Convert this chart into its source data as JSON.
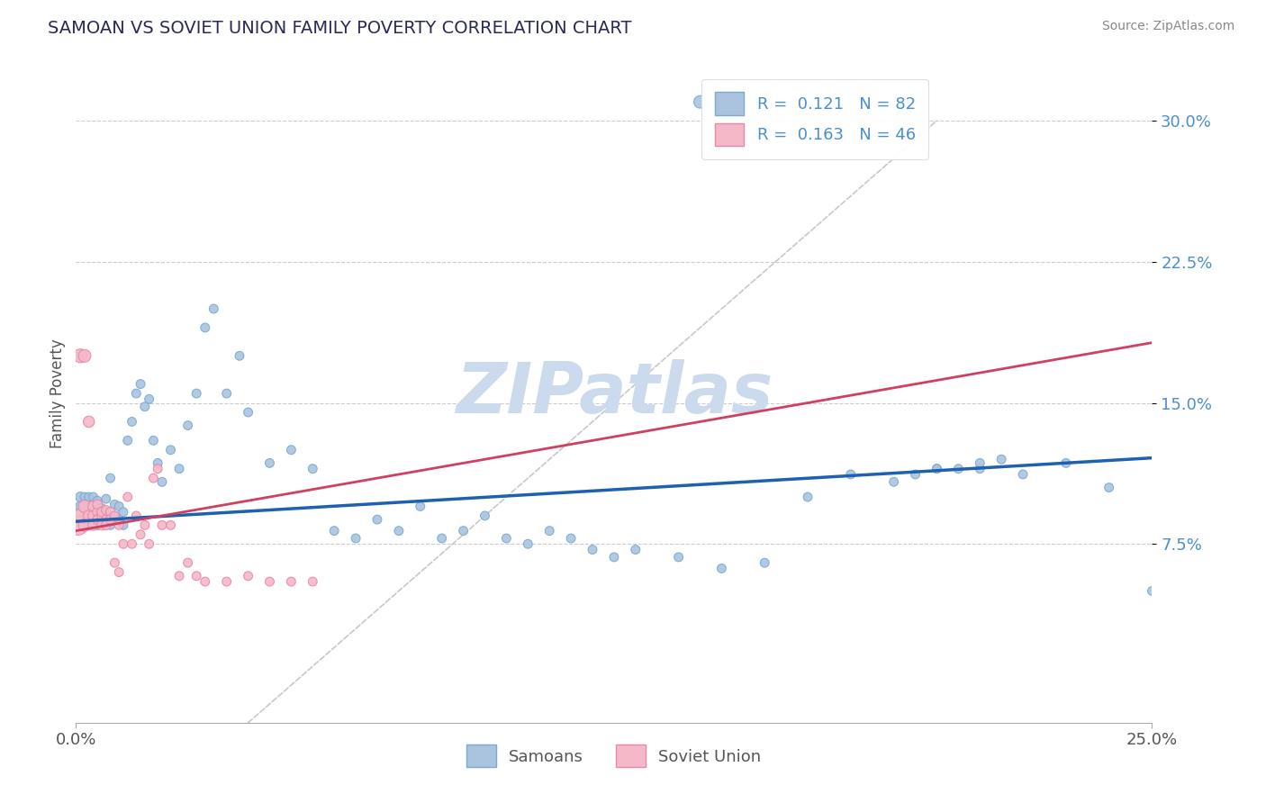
{
  "title": "SAMOAN VS SOVIET UNION FAMILY POVERTY CORRELATION CHART",
  "source_text": "Source: ZipAtlas.com",
  "ylabel": "Family Poverty",
  "xlim": [
    0.0,
    0.25
  ],
  "ylim": [
    -0.02,
    0.33
  ],
  "y_ticks": [
    0.075,
    0.15,
    0.225,
    0.3
  ],
  "y_tick_labels": [
    "7.5%",
    "15.0%",
    "22.5%",
    "30.0%"
  ],
  "samoan_color": "#aac4e0",
  "samoan_edge_color": "#7aaad0",
  "soviet_color": "#f5b8c8",
  "soviet_edge_color": "#e888a8",
  "trend_samoan_color": "#2060b0",
  "trend_soviet_color": "#d04060",
  "R_samoan": 0.121,
  "N_samoan": 82,
  "R_soviet": 0.163,
  "N_soviet": 46,
  "watermark": "ZIPatlas",
  "watermark_color": "#ccdaee",
  "grid_color": "#cccccc",
  "background_color": "#ffffff",
  "samoan_x": [
    0.001,
    0.001,
    0.002,
    0.002,
    0.002,
    0.003,
    0.003,
    0.003,
    0.004,
    0.004,
    0.004,
    0.005,
    0.005,
    0.005,
    0.006,
    0.006,
    0.007,
    0.007,
    0.007,
    0.008,
    0.008,
    0.009,
    0.009,
    0.01,
    0.01,
    0.011,
    0.011,
    0.012,
    0.013,
    0.014,
    0.015,
    0.016,
    0.017,
    0.018,
    0.019,
    0.02,
    0.022,
    0.024,
    0.026,
    0.028,
    0.03,
    0.032,
    0.035,
    0.038,
    0.04,
    0.045,
    0.05,
    0.055,
    0.06,
    0.065,
    0.07,
    0.075,
    0.08,
    0.085,
    0.09,
    0.095,
    0.1,
    0.105,
    0.11,
    0.115,
    0.12,
    0.125,
    0.13,
    0.14,
    0.15,
    0.16,
    0.17,
    0.18,
    0.19,
    0.2,
    0.21,
    0.22,
    0.23,
    0.24,
    0.25,
    0.255,
    0.2,
    0.21,
    0.195,
    0.205,
    0.215,
    0.145
  ],
  "samoan_y": [
    0.095,
    0.1,
    0.09,
    0.095,
    0.1,
    0.085,
    0.09,
    0.1,
    0.088,
    0.093,
    0.1,
    0.085,
    0.092,
    0.098,
    0.087,
    0.094,
    0.086,
    0.092,
    0.099,
    0.085,
    0.11,
    0.09,
    0.096,
    0.088,
    0.095,
    0.085,
    0.092,
    0.13,
    0.14,
    0.155,
    0.16,
    0.148,
    0.152,
    0.13,
    0.118,
    0.108,
    0.125,
    0.115,
    0.138,
    0.155,
    0.19,
    0.2,
    0.155,
    0.175,
    0.145,
    0.118,
    0.125,
    0.115,
    0.082,
    0.078,
    0.088,
    0.082,
    0.095,
    0.078,
    0.082,
    0.09,
    0.078,
    0.075,
    0.082,
    0.078,
    0.072,
    0.068,
    0.072,
    0.068,
    0.062,
    0.065,
    0.1,
    0.112,
    0.108,
    0.115,
    0.115,
    0.112,
    0.118,
    0.105,
    0.05,
    0.052,
    0.115,
    0.118,
    0.112,
    0.115,
    0.12,
    0.31
  ],
  "soviet_x": [
    0.0005,
    0.001,
    0.001,
    0.002,
    0.002,
    0.002,
    0.003,
    0.003,
    0.004,
    0.004,
    0.004,
    0.005,
    0.005,
    0.005,
    0.006,
    0.006,
    0.006,
    0.007,
    0.007,
    0.007,
    0.008,
    0.008,
    0.009,
    0.009,
    0.01,
    0.01,
    0.011,
    0.012,
    0.013,
    0.014,
    0.015,
    0.016,
    0.017,
    0.018,
    0.019,
    0.02,
    0.022,
    0.024,
    0.026,
    0.028,
    0.03,
    0.035,
    0.04,
    0.045,
    0.05,
    0.055
  ],
  "soviet_y": [
    0.085,
    0.09,
    0.175,
    0.095,
    0.175,
    0.085,
    0.09,
    0.14,
    0.09,
    0.095,
    0.085,
    0.092,
    0.096,
    0.088,
    0.09,
    0.085,
    0.092,
    0.088,
    0.093,
    0.085,
    0.092,
    0.088,
    0.09,
    0.065,
    0.085,
    0.06,
    0.075,
    0.1,
    0.075,
    0.09,
    0.08,
    0.085,
    0.075,
    0.11,
    0.115,
    0.085,
    0.085,
    0.058,
    0.065,
    0.058,
    0.055,
    0.055,
    0.058,
    0.055,
    0.055,
    0.055
  ],
  "samoan_sizes": [
    60,
    60,
    50,
    50,
    50,
    50,
    50,
    50,
    50,
    50,
    50,
    50,
    50,
    50,
    50,
    50,
    50,
    50,
    50,
    50,
    50,
    50,
    50,
    50,
    50,
    50,
    50,
    50,
    50,
    50,
    50,
    50,
    50,
    50,
    50,
    50,
    50,
    50,
    50,
    50,
    50,
    50,
    50,
    50,
    50,
    50,
    50,
    50,
    50,
    50,
    50,
    50,
    50,
    50,
    50,
    50,
    50,
    50,
    50,
    50,
    50,
    50,
    50,
    50,
    50,
    50,
    50,
    50,
    50,
    50,
    50,
    50,
    50,
    50,
    50,
    50,
    50,
    50,
    50,
    50,
    50,
    100
  ],
  "soviet_sizes": [
    250,
    120,
    120,
    100,
    100,
    100,
    80,
    80,
    70,
    70,
    70,
    60,
    60,
    60,
    60,
    60,
    60,
    55,
    55,
    55,
    55,
    55,
    50,
    50,
    50,
    50,
    50,
    50,
    50,
    50,
    50,
    50,
    50,
    50,
    50,
    50,
    50,
    50,
    50,
    50,
    50,
    50,
    50,
    50,
    50,
    50
  ]
}
